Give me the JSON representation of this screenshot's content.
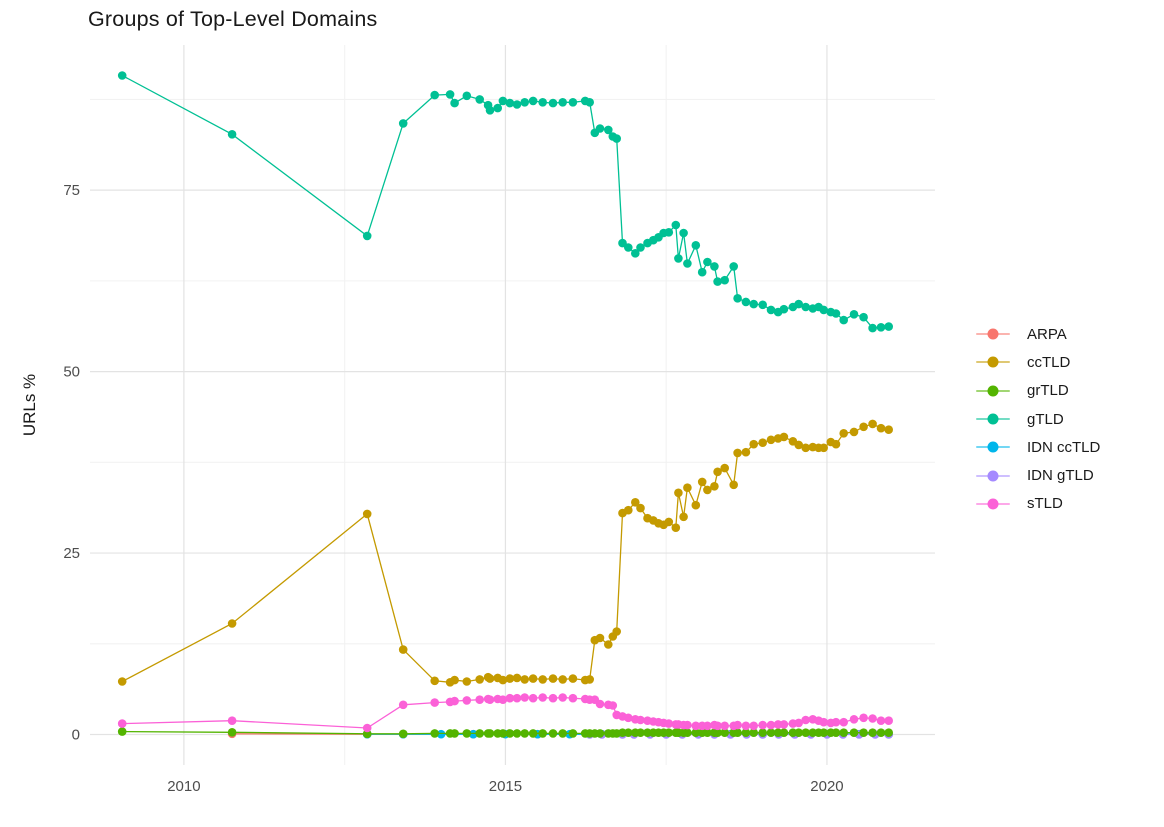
{
  "chart_data": {
    "type": "line",
    "markers": true,
    "title": "Groups of Top-Level Domains",
    "xlabel": "",
    "ylabel": "URLs %",
    "grid": true,
    "legend_position": "right",
    "x_axis": {
      "ticks": [
        2010,
        2015,
        2020
      ],
      "labels": [
        "2010",
        "2015",
        "2020"
      ],
      "minor": [
        2012.5,
        2017.5
      ],
      "range": [
        2008.54,
        2021.68
      ]
    },
    "y_axis": {
      "ticks": [
        0,
        25,
        50,
        75
      ],
      "labels": [
        "0",
        "25",
        "50",
        "75"
      ],
      "minor": [
        12.5,
        37.5,
        62.5,
        87.5
      ],
      "range": [
        -4.2,
        95
      ]
    },
    "draw_order": [
      0,
      4,
      5,
      1,
      3,
      2,
      6
    ],
    "x_shared": [
      2009.04,
      2010.75,
      2012.85,
      2013.41,
      2013.9,
      2014.14,
      2014.21,
      2014.4,
      2014.6,
      2014.73,
      2014.76,
      2014.88,
      2014.96,
      2015.07,
      2015.18,
      2015.3,
      2015.43,
      2015.58,
      2015.74,
      2015.89,
      2016.05,
      2016.24,
      2016.31,
      2016.39,
      2016.47,
      2016.6,
      2016.67,
      2016.73,
      2016.82,
      2016.91,
      2017.02,
      2017.1,
      2017.21,
      2017.3,
      2017.38,
      2017.46,
      2017.54,
      2017.65,
      2017.69,
      2017.77,
      2017.83,
      2017.96,
      2018.06,
      2018.14,
      2018.25,
      2018.3,
      2018.41,
      2018.55,
      2018.61,
      2018.74,
      2018.86,
      2019.0,
      2019.13,
      2019.24,
      2019.33,
      2019.47,
      2019.56,
      2019.67,
      2019.78,
      2019.87,
      2019.95,
      2020.06,
      2020.14,
      2020.26,
      2020.42,
      2020.57,
      2020.71,
      2020.84,
      2020.96
    ],
    "series": [
      {
        "name": "ARPA",
        "color": "#F8766D",
        "x": [
          2010.75,
          2012.85,
          2013.41,
          2014.5,
          2015.5,
          2016.5,
          2017.5,
          2018.5,
          2019.5,
          2020.5,
          2020.96
        ],
        "y": [
          0.1,
          0.05,
          0.05,
          0.05,
          0.05,
          0.05,
          0.05,
          0.05,
          0.05,
          0.05,
          0.05
        ]
      },
      {
        "name": "ccTLD",
        "color": "#C49A00",
        "y": [
          7.3,
          15.3,
          30.4,
          11.7,
          7.4,
          7.2,
          7.5,
          7.3,
          7.6,
          7.9,
          7.7,
          7.8,
          7.5,
          7.7,
          7.8,
          7.6,
          7.7,
          7.6,
          7.7,
          7.6,
          7.7,
          7.5,
          7.6,
          13.0,
          13.3,
          12.4,
          13.5,
          14.2,
          30.5,
          30.9,
          32.0,
          31.2,
          29.8,
          29.5,
          29.1,
          28.9,
          29.3,
          28.5,
          33.3,
          30.0,
          34.0,
          31.6,
          34.8,
          33.7,
          34.2,
          36.2,
          36.7,
          34.4,
          38.8,
          38.9,
          40.0,
          40.2,
          40.6,
          40.8,
          41.0,
          40.4,
          39.9,
          39.5,
          39.6,
          39.5,
          39.5,
          40.3,
          40.0,
          41.5,
          41.7,
          42.4,
          42.8,
          42.2,
          42.0
        ]
      },
      {
        "name": "grTLD",
        "color": "#53B400",
        "y": [
          0.4,
          0.3,
          0.1,
          0.1,
          0.15,
          0.15,
          0.15,
          0.15,
          0.15,
          0.15,
          0.15,
          0.15,
          0.15,
          0.15,
          0.15,
          0.15,
          0.15,
          0.15,
          0.15,
          0.15,
          0.15,
          0.15,
          0.15,
          0.15,
          0.15,
          0.15,
          0.15,
          0.15,
          0.25,
          0.25,
          0.25,
          0.25,
          0.25,
          0.25,
          0.25,
          0.25,
          0.25,
          0.25,
          0.25,
          0.25,
          0.25,
          0.25,
          0.25,
          0.25,
          0.25,
          0.25,
          0.25,
          0.25,
          0.25,
          0.25,
          0.25,
          0.25,
          0.25,
          0.25,
          0.25,
          0.25,
          0.25,
          0.25,
          0.25,
          0.25,
          0.25,
          0.25,
          0.25,
          0.25,
          0.25,
          0.25,
          0.25,
          0.25,
          0.25
        ]
      },
      {
        "name": "gTLD",
        "color": "#00C094",
        "y": [
          90.8,
          82.7,
          68.7,
          84.2,
          88.1,
          88.2,
          87.0,
          88.0,
          87.5,
          86.7,
          86.0,
          86.3,
          87.3,
          87.0,
          86.8,
          87.1,
          87.3,
          87.1,
          87.0,
          87.1,
          87.1,
          87.3,
          87.1,
          82.9,
          83.5,
          83.3,
          82.4,
          82.1,
          67.7,
          67.1,
          66.3,
          67.1,
          67.7,
          68.1,
          68.5,
          69.1,
          69.2,
          70.2,
          65.6,
          69.1,
          64.9,
          67.4,
          63.7,
          65.1,
          64.5,
          62.4,
          62.6,
          64.5,
          60.1,
          59.6,
          59.3,
          59.2,
          58.5,
          58.2,
          58.6,
          58.9,
          59.3,
          58.9,
          58.7,
          58.9,
          58.5,
          58.2,
          58.0,
          57.1,
          57.9,
          57.5,
          56.0,
          56.1,
          56.2
        ]
      },
      {
        "name": "IDN ccTLD",
        "color": "#00B6EB",
        "x": [
          2012.85,
          2013.41,
          2014.0,
          2014.5,
          2015.0,
          2015.5,
          2016.0,
          2016.5,
          2016.82,
          2017.5,
          2018.0,
          2018.5,
          2019.0,
          2019.5,
          2020.0,
          2020.5,
          2020.96
        ],
        "y": [
          0.05,
          0.05,
          0.05,
          0.05,
          0.05,
          0.05,
          0.05,
          0.05,
          0.05,
          0.05,
          0.05,
          0.05,
          0.05,
          0.05,
          0.05,
          0.05,
          0.05
        ]
      },
      {
        "name": "IDN gTLD",
        "color": "#A58AFF",
        "x": [
          2016.31,
          2016.5,
          2016.82,
          2017.0,
          2017.25,
          2017.5,
          2017.75,
          2018.0,
          2018.25,
          2018.5,
          2018.75,
          2019.0,
          2019.25,
          2019.5,
          2019.75,
          2020.0,
          2020.25,
          2020.5,
          2020.75,
          2020.96
        ],
        "y": [
          0.0,
          0.0,
          0.0,
          0.0,
          0.0,
          0.0,
          0.0,
          0.0,
          0.0,
          0.0,
          0.0,
          0.0,
          0.0,
          0.0,
          0.0,
          0.0,
          0.0,
          0.0,
          0.0,
          0.0
        ]
      },
      {
        "name": "sTLD",
        "color": "#FB61D7",
        "y": [
          1.5,
          1.9,
          0.9,
          4.1,
          4.4,
          4.5,
          4.6,
          4.7,
          4.8,
          4.9,
          4.8,
          4.9,
          4.8,
          5.0,
          5.0,
          5.1,
          5.0,
          5.1,
          5.0,
          5.1,
          5.0,
          4.9,
          4.8,
          4.8,
          4.2,
          4.1,
          4.0,
          2.7,
          2.5,
          2.3,
          2.1,
          2.0,
          1.9,
          1.8,
          1.7,
          1.6,
          1.5,
          1.4,
          1.4,
          1.3,
          1.3,
          1.2,
          1.2,
          1.2,
          1.3,
          1.2,
          1.2,
          1.2,
          1.3,
          1.2,
          1.2,
          1.3,
          1.3,
          1.4,
          1.4,
          1.5,
          1.6,
          2.0,
          2.1,
          1.9,
          1.7,
          1.6,
          1.7,
          1.7,
          2.1,
          2.3,
          2.2,
          1.9,
          1.9
        ]
      }
    ]
  }
}
